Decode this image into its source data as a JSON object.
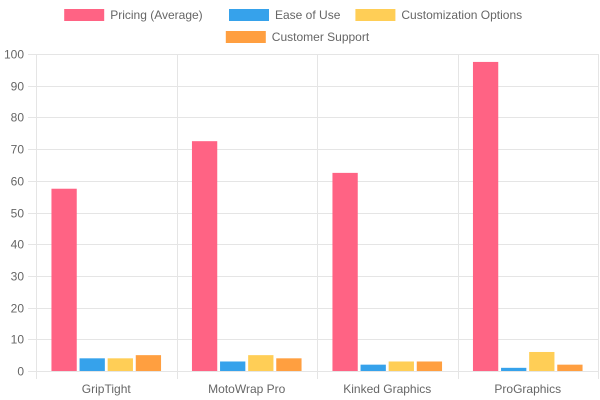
{
  "chart_data": {
    "type": "bar",
    "categories": [
      "GripTight",
      "MotoWrap Pro",
      "Kinked Graphics",
      "ProGraphics"
    ],
    "series": [
      {
        "name": "Pricing (Average)",
        "color": "#ff6384",
        "values": [
          57.5,
          72.5,
          62.5,
          97.5
        ]
      },
      {
        "name": "Ease of Use",
        "color": "#36a2eb",
        "values": [
          4,
          3,
          2,
          1
        ]
      },
      {
        "name": "Customization Options",
        "color": "#ffce56",
        "values": [
          4,
          5,
          3,
          6
        ]
      },
      {
        "name": "Customer Support",
        "color": "#ff9f40",
        "values": [
          5,
          4,
          3,
          2
        ]
      }
    ],
    "ylim": [
      0,
      100
    ],
    "yticks": [
      0,
      10,
      20,
      30,
      40,
      50,
      60,
      70,
      80,
      90,
      100
    ],
    "grid": true,
    "legend_position": "top"
  }
}
